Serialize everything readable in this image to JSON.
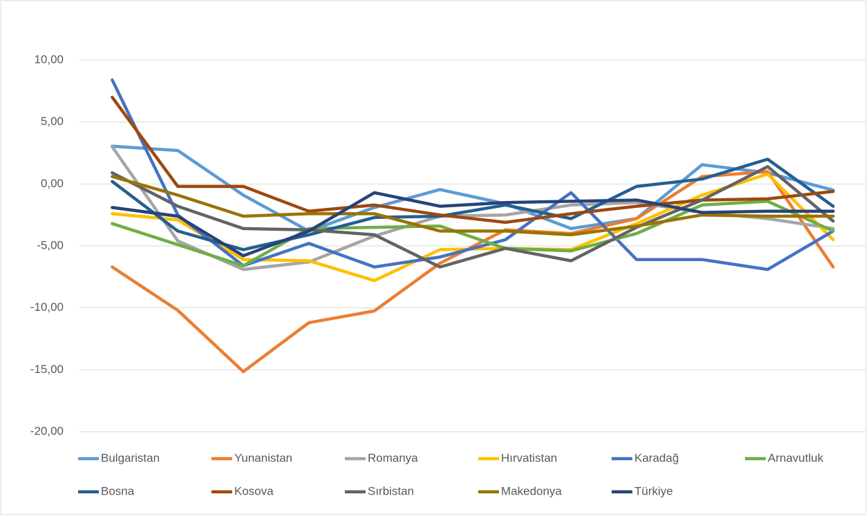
{
  "chart_data": {
    "type": "line",
    "categories": [
      null,
      null,
      null,
      null,
      null,
      null,
      null,
      null,
      null,
      null,
      null,
      null
    ],
    "ylim": [
      -20,
      10
    ],
    "yticks": [
      {
        "value": -20,
        "label": "-20,00"
      },
      {
        "value": -15,
        "label": "-15,00"
      },
      {
        "value": -10,
        "label": "-10,00"
      },
      {
        "value": -5,
        "label": "-5,00"
      },
      {
        "value": 0,
        "label": "0,00"
      },
      {
        "value": 5,
        "label": "5,00"
      },
      {
        "value": 10,
        "label": "10,00"
      }
    ],
    "grid": true,
    "legend": "bottom",
    "series": [
      {
        "name": "Bulgaristan",
        "color": "#5b9bd5",
        "values": [
          3.05,
          2.7,
          -0.9,
          -3.8,
          -1.9,
          -0.45,
          -1.6,
          -3.6,
          -2.8,
          1.55,
          0.9,
          -0.5
        ]
      },
      {
        "name": "Yunanistan",
        "color": "#ed7d31",
        "values": [
          -6.7,
          -10.2,
          -15.15,
          -11.2,
          -10.25,
          -6.4,
          -3.7,
          -4.0,
          -2.8,
          0.6,
          1.0,
          -6.7
        ]
      },
      {
        "name": "Romanya",
        "color": "#a5a5a5",
        "values": [
          3.0,
          -4.6,
          -6.9,
          -6.3,
          -4.2,
          -2.6,
          -2.5,
          -1.7,
          -1.5,
          -2.3,
          -2.8,
          -3.6
        ]
      },
      {
        "name": "Hırvatistan",
        "color": "#ffc000",
        "values": [
          -2.4,
          -2.9,
          -6.1,
          -6.2,
          -7.8,
          -5.3,
          -5.2,
          -5.3,
          -3.2,
          -0.9,
          0.8,
          -4.5
        ]
      },
      {
        "name": "Karadağ",
        "color": "#4472c4",
        "values": [
          8.4,
          -2.5,
          -6.6,
          -4.8,
          -6.7,
          -5.9,
          -4.5,
          -0.7,
          -6.1,
          -6.1,
          -6.9,
          -3.8
        ]
      },
      {
        "name": "Arnavutluk",
        "color": "#70ad47",
        "values": [
          -3.2,
          -4.9,
          -6.6,
          -3.6,
          -3.5,
          -3.4,
          -5.2,
          -5.4,
          -4.0,
          -1.7,
          -1.4,
          -3.8
        ]
      },
      {
        "name": "Bosna",
        "color": "#255e91",
        "values": [
          0.2,
          -3.8,
          -5.3,
          -4.1,
          -2.7,
          -2.6,
          -1.7,
          -2.8,
          -0.2,
          0.4,
          2.0,
          -1.8
        ]
      },
      {
        "name": "Kosova",
        "color": "#9e480e",
        "values": [
          7.0,
          -0.2,
          -0.2,
          -2.2,
          -1.7,
          -2.5,
          -3.1,
          -2.4,
          -1.8,
          -1.3,
          -1.2,
          -0.6
        ]
      },
      {
        "name": "Sırbistan",
        "color": "#636363",
        "values": [
          0.9,
          -1.8,
          -3.6,
          -3.7,
          -4.1,
          -6.7,
          -5.2,
          -6.2,
          -3.5,
          -1.3,
          1.4,
          -3.0
        ]
      },
      {
        "name": "Makedonya",
        "color": "#997300",
        "values": [
          0.6,
          -0.9,
          -2.6,
          -2.4,
          -2.4,
          -3.8,
          -3.8,
          -4.1,
          -3.4,
          -2.5,
          -2.6,
          -2.6
        ]
      },
      {
        "name": "Türkiye",
        "color": "#264478",
        "values": [
          -1.9,
          -2.6,
          -5.8,
          -3.8,
          -0.7,
          -1.8,
          -1.5,
          -1.4,
          -1.3,
          -2.3,
          -2.2,
          -2.2
        ]
      }
    ]
  }
}
